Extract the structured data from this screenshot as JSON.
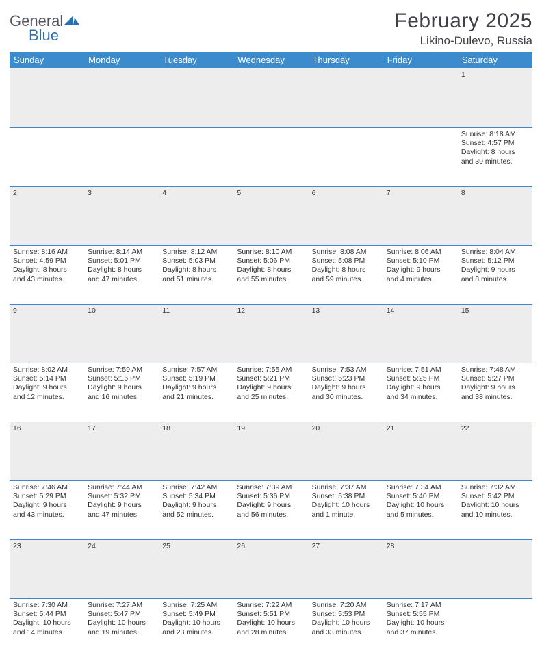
{
  "brand": {
    "general": "General",
    "blue": "Blue"
  },
  "title": "February 2025",
  "location": "Likino-Dulevo, Russia",
  "colors": {
    "header_bg": "#3b8bcd",
    "header_fg": "#ffffff",
    "daynum_bg": "#ededed",
    "rule": "#3b8bcd",
    "text": "#333333",
    "brand_gray": "#555560",
    "brand_blue": "#2b6fb0",
    "page_bg": "#ffffff"
  },
  "weekdays": [
    "Sunday",
    "Monday",
    "Tuesday",
    "Wednesday",
    "Thursday",
    "Friday",
    "Saturday"
  ],
  "weeks": [
    [
      null,
      null,
      null,
      null,
      null,
      null,
      {
        "n": "1",
        "sunrise": "8:18 AM",
        "sunset": "4:57 PM",
        "daylight": "8 hours and 39 minutes."
      }
    ],
    [
      {
        "n": "2",
        "sunrise": "8:16 AM",
        "sunset": "4:59 PM",
        "daylight": "8 hours and 43 minutes."
      },
      {
        "n": "3",
        "sunrise": "8:14 AM",
        "sunset": "5:01 PM",
        "daylight": "8 hours and 47 minutes."
      },
      {
        "n": "4",
        "sunrise": "8:12 AM",
        "sunset": "5:03 PM",
        "daylight": "8 hours and 51 minutes."
      },
      {
        "n": "5",
        "sunrise": "8:10 AM",
        "sunset": "5:06 PM",
        "daylight": "8 hours and 55 minutes."
      },
      {
        "n": "6",
        "sunrise": "8:08 AM",
        "sunset": "5:08 PM",
        "daylight": "8 hours and 59 minutes."
      },
      {
        "n": "7",
        "sunrise": "8:06 AM",
        "sunset": "5:10 PM",
        "daylight": "9 hours and 4 minutes."
      },
      {
        "n": "8",
        "sunrise": "8:04 AM",
        "sunset": "5:12 PM",
        "daylight": "9 hours and 8 minutes."
      }
    ],
    [
      {
        "n": "9",
        "sunrise": "8:02 AM",
        "sunset": "5:14 PM",
        "daylight": "9 hours and 12 minutes."
      },
      {
        "n": "10",
        "sunrise": "7:59 AM",
        "sunset": "5:16 PM",
        "daylight": "9 hours and 16 minutes."
      },
      {
        "n": "11",
        "sunrise": "7:57 AM",
        "sunset": "5:19 PM",
        "daylight": "9 hours and 21 minutes."
      },
      {
        "n": "12",
        "sunrise": "7:55 AM",
        "sunset": "5:21 PM",
        "daylight": "9 hours and 25 minutes."
      },
      {
        "n": "13",
        "sunrise": "7:53 AM",
        "sunset": "5:23 PM",
        "daylight": "9 hours and 30 minutes."
      },
      {
        "n": "14",
        "sunrise": "7:51 AM",
        "sunset": "5:25 PM",
        "daylight": "9 hours and 34 minutes."
      },
      {
        "n": "15",
        "sunrise": "7:48 AM",
        "sunset": "5:27 PM",
        "daylight": "9 hours and 38 minutes."
      }
    ],
    [
      {
        "n": "16",
        "sunrise": "7:46 AM",
        "sunset": "5:29 PM",
        "daylight": "9 hours and 43 minutes."
      },
      {
        "n": "17",
        "sunrise": "7:44 AM",
        "sunset": "5:32 PM",
        "daylight": "9 hours and 47 minutes."
      },
      {
        "n": "18",
        "sunrise": "7:42 AM",
        "sunset": "5:34 PM",
        "daylight": "9 hours and 52 minutes."
      },
      {
        "n": "19",
        "sunrise": "7:39 AM",
        "sunset": "5:36 PM",
        "daylight": "9 hours and 56 minutes."
      },
      {
        "n": "20",
        "sunrise": "7:37 AM",
        "sunset": "5:38 PM",
        "daylight": "10 hours and 1 minute."
      },
      {
        "n": "21",
        "sunrise": "7:34 AM",
        "sunset": "5:40 PM",
        "daylight": "10 hours and 5 minutes."
      },
      {
        "n": "22",
        "sunrise": "7:32 AM",
        "sunset": "5:42 PM",
        "daylight": "10 hours and 10 minutes."
      }
    ],
    [
      {
        "n": "23",
        "sunrise": "7:30 AM",
        "sunset": "5:44 PM",
        "daylight": "10 hours and 14 minutes."
      },
      {
        "n": "24",
        "sunrise": "7:27 AM",
        "sunset": "5:47 PM",
        "daylight": "10 hours and 19 minutes."
      },
      {
        "n": "25",
        "sunrise": "7:25 AM",
        "sunset": "5:49 PM",
        "daylight": "10 hours and 23 minutes."
      },
      {
        "n": "26",
        "sunrise": "7:22 AM",
        "sunset": "5:51 PM",
        "daylight": "10 hours and 28 minutes."
      },
      {
        "n": "27",
        "sunrise": "7:20 AM",
        "sunset": "5:53 PM",
        "daylight": "10 hours and 33 minutes."
      },
      {
        "n": "28",
        "sunrise": "7:17 AM",
        "sunset": "5:55 PM",
        "daylight": "10 hours and 37 minutes."
      },
      null
    ]
  ],
  "labels": {
    "sunrise": "Sunrise: ",
    "sunset": "Sunset: ",
    "daylight": "Daylight: "
  }
}
